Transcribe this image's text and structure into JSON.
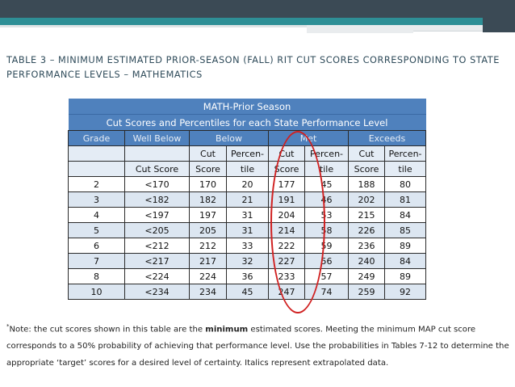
{
  "title": "TABLE 3 – MINIMUM ESTIMATED PRIOR-SEASON (FALL) RIT CUT SCORES CORRESPONDING TO STATE PERFORMANCE LEVELS – MATHEMATICS",
  "table": {
    "banner": "MATH-Prior Season",
    "subbanner": "Cut Scores and Percentiles for each State Performance Level",
    "groups": [
      "Grade",
      "Well Below",
      "Below",
      "Met",
      "Exceeds"
    ],
    "subheads_top": [
      "",
      "",
      "Cut",
      "Percen-",
      "Cut",
      "Percen-",
      "Cut",
      "Percen-"
    ],
    "subheads_bottom": [
      "",
      "Cut Score",
      "Score",
      "tile",
      "Score",
      "tile",
      "Score",
      "tile"
    ],
    "rows": [
      [
        "2",
        "<170",
        "170",
        "20",
        "177",
        "45",
        "188",
        "80"
      ],
      [
        "3",
        "<182",
        "182",
        "21",
        "191",
        "46",
        "202",
        "81"
      ],
      [
        "4",
        "<197",
        "197",
        "31",
        "204",
        "53",
        "215",
        "84"
      ],
      [
        "5",
        "<205",
        "205",
        "31",
        "214",
        "58",
        "226",
        "85"
      ],
      [
        "6",
        "<212",
        "212",
        "33",
        "222",
        "59",
        "236",
        "89"
      ],
      [
        "7",
        "<217",
        "217",
        "32",
        "227",
        "56",
        "240",
        "84"
      ],
      [
        "8",
        "<224",
        "224",
        "36",
        "233",
        "57",
        "249",
        "89"
      ],
      [
        "10",
        "<234",
        "234",
        "45",
        "247",
        "74",
        "259",
        "92"
      ]
    ]
  },
  "note": {
    "marker": "*",
    "before": "Note:  the cut scores shown in this table are the ",
    "bold": "minimum",
    "after": " estimated scores. Meeting the minimum MAP cut score corresponds to a 50% probability of achieving that performance level. Use the probabilities in Tables 7-12 to determine the appropriate ‘target’ scores for a desired level of certainty. Italics represent extrapolated data."
  },
  "colors": {
    "header_blue": "#4f81bd",
    "band_blue": "#dce6f1",
    "highlight_oval": "#d02020",
    "slide_dark": "#3b4a55",
    "slide_teal": "#2e8f96"
  }
}
